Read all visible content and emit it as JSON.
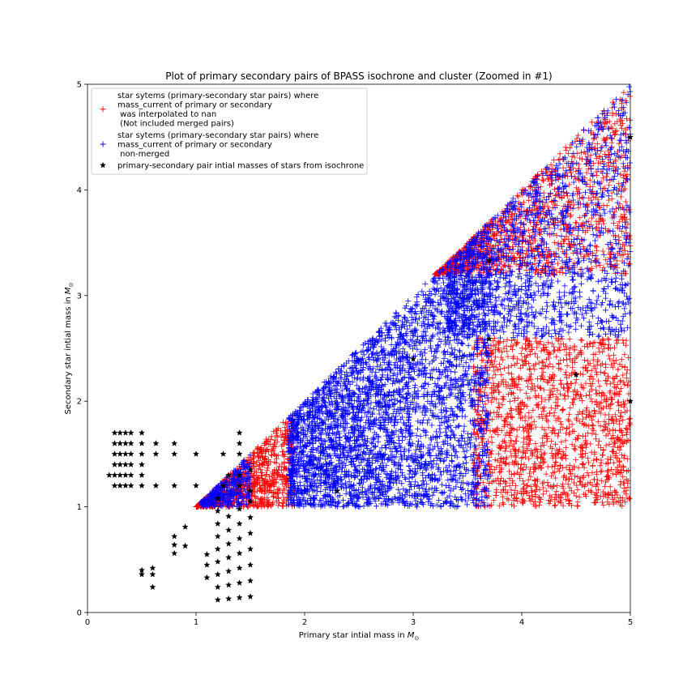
{
  "chart_data": {
    "type": "scatter",
    "title": "Plot of primary secondary pairs of BPASS isochrone and cluster (Zoomed in #1)",
    "xlabel_prefix": "Primary star intial mass in ",
    "ylabel_prefix": "Secondary star intial mass in ",
    "unit_symbol": "M",
    "unit_subscript": "⊙",
    "xlim": [
      0,
      5
    ],
    "ylim": [
      0,
      5
    ],
    "xticks": [
      "0",
      "1",
      "2",
      "3",
      "4",
      "5"
    ],
    "yticks": [
      "0",
      "1",
      "2",
      "3",
      "4",
      "5"
    ],
    "grid": false,
    "legend_position": "upper-left",
    "series": [
      {
        "name_lines": [
          "star sytems (primary-secondary star pairs) where",
          "mass_current of primary or secondary",
          " was interpolated to nan",
          " (Not included merged pairs)"
        ],
        "marker": "+",
        "color": "#ff0000",
        "regions": [
          {
            "x_range": [
              1.0,
              1.9
            ],
            "y_min": 1.0,
            "y_max_rule": "diagonal",
            "count": 900
          },
          {
            "x_range": [
              3.2,
              5.0
            ],
            "y_min": 3.2,
            "y_max_rule": "diagonal",
            "count": 1200
          },
          {
            "x_range": [
              3.55,
              5.0
            ],
            "y_min": 1.0,
            "y_max": 2.6,
            "count": 1500
          }
        ]
      },
      {
        "name_lines": [
          "star sytems (primary-secondary star pairs) where",
          "mass_current of primary or secondary",
          " non-merged"
        ],
        "marker": "+",
        "color": "#0000ff",
        "regions": [
          {
            "x_range": [
              1.05,
              1.5
            ],
            "y_min": 1.0,
            "y_max_rule": "diagonal",
            "count": 300
          },
          {
            "x_range": [
              1.85,
              3.7
            ],
            "y_min": 1.0,
            "y_max_rule": "diagonal",
            "count": 3500
          },
          {
            "x_range": [
              3.3,
              5.0
            ],
            "y_min": 2.6,
            "y_max_rule": "diagonal",
            "count": 1400
          }
        ]
      },
      {
        "name_lines": [
          "primary-secondary pair intial masses of stars from isochrone"
        ],
        "marker": "*",
        "color": "#000000",
        "points": [
          [
            0.2,
            1.3
          ],
          [
            0.25,
            1.3
          ],
          [
            0.3,
            1.3
          ],
          [
            0.35,
            1.3
          ],
          [
            0.4,
            1.3
          ],
          [
            0.5,
            1.3
          ],
          [
            0.25,
            1.2
          ],
          [
            0.3,
            1.2
          ],
          [
            0.35,
            1.2
          ],
          [
            0.4,
            1.2
          ],
          [
            0.5,
            1.2
          ],
          [
            0.63,
            1.2
          ],
          [
            0.8,
            1.2
          ],
          [
            1.0,
            1.2
          ],
          [
            0.25,
            1.4
          ],
          [
            0.3,
            1.4
          ],
          [
            0.35,
            1.4
          ],
          [
            0.4,
            1.4
          ],
          [
            0.5,
            1.4
          ],
          [
            0.25,
            1.5
          ],
          [
            0.3,
            1.5
          ],
          [
            0.35,
            1.5
          ],
          [
            0.4,
            1.5
          ],
          [
            0.5,
            1.5
          ],
          [
            0.63,
            1.5
          ],
          [
            0.8,
            1.5
          ],
          [
            1.0,
            1.5
          ],
          [
            1.25,
            1.5
          ],
          [
            1.4,
            1.5
          ],
          [
            0.25,
            1.6
          ],
          [
            0.3,
            1.6
          ],
          [
            0.35,
            1.6
          ],
          [
            0.4,
            1.6
          ],
          [
            0.5,
            1.6
          ],
          [
            0.63,
            1.6
          ],
          [
            0.8,
            1.6
          ],
          [
            1.4,
            1.6
          ],
          [
            0.25,
            1.7
          ],
          [
            0.3,
            1.7
          ],
          [
            0.35,
            1.7
          ],
          [
            0.4,
            1.7
          ],
          [
            0.5,
            1.7
          ],
          [
            1.4,
            1.7
          ],
          [
            1.25,
            1.2
          ],
          [
            1.3,
            1.3
          ],
          [
            1.4,
            1.3
          ],
          [
            1.4,
            1.2
          ],
          [
            1.2,
            1.08
          ],
          [
            1.5,
            1.35
          ],
          [
            1.5,
            1.15
          ],
          [
            1.5,
            1.05
          ],
          [
            0.5,
            0.4
          ],
          [
            0.5,
            0.36
          ],
          [
            0.6,
            0.42
          ],
          [
            0.6,
            0.36
          ],
          [
            0.6,
            0.24
          ],
          [
            0.8,
            0.72
          ],
          [
            0.8,
            0.64
          ],
          [
            0.8,
            0.56
          ],
          [
            0.9,
            0.81
          ],
          [
            0.9,
            0.63
          ],
          [
            1.1,
            0.55
          ],
          [
            1.1,
            0.45
          ],
          [
            1.1,
            0.33
          ],
          [
            1.2,
            0.96
          ],
          [
            1.2,
            0.84
          ],
          [
            1.2,
            0.72
          ],
          [
            1.2,
            0.6
          ],
          [
            1.2,
            0.48
          ],
          [
            1.2,
            0.36
          ],
          [
            1.2,
            0.24
          ],
          [
            1.2,
            0.12
          ],
          [
            1.3,
            0.91
          ],
          [
            1.3,
            0.78
          ],
          [
            1.3,
            0.65
          ],
          [
            1.3,
            0.52
          ],
          [
            1.3,
            0.39
          ],
          [
            1.3,
            0.26
          ],
          [
            1.3,
            0.13
          ],
          [
            1.4,
            0.98
          ],
          [
            1.4,
            0.84
          ],
          [
            1.4,
            0.7
          ],
          [
            1.4,
            0.56
          ],
          [
            1.4,
            0.42
          ],
          [
            1.4,
            0.28
          ],
          [
            1.4,
            0.14
          ],
          [
            1.5,
            0.9
          ],
          [
            1.5,
            0.75
          ],
          [
            1.5,
            0.6
          ],
          [
            1.5,
            0.45
          ],
          [
            1.5,
            0.3
          ],
          [
            1.5,
            0.15
          ],
          [
            2.3,
            1.15
          ],
          [
            3.0,
            2.4
          ],
          [
            3.7,
            2.59
          ],
          [
            3.7,
            3.33
          ],
          [
            4.5,
            2.25
          ],
          [
            5.0,
            2.0
          ],
          [
            5.0,
            4.5
          ]
        ]
      }
    ]
  }
}
